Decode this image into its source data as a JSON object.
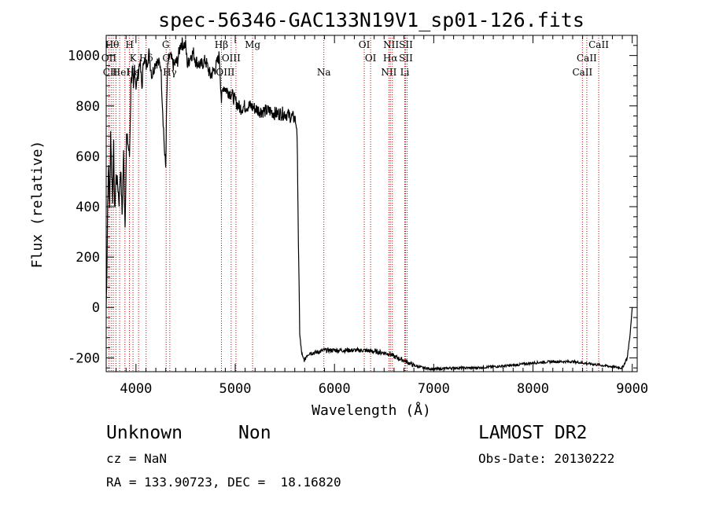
{
  "chart_data": {
    "type": "line",
    "title": "spec-56346-GAC133N19V1_sp01-126.fits",
    "xlabel": "Wavelength (Å)",
    "ylabel": "Flux (relative)",
    "xlim": [
      3700,
      9050
    ],
    "ylim": [
      -255,
      1080
    ],
    "xticks": [
      4000,
      5000,
      6000,
      7000,
      8000,
      9000
    ],
    "yticks": [
      -200,
      0,
      200,
      400,
      600,
      800,
      1000
    ],
    "line_color": "#000000",
    "marker_color": "#cc0000",
    "series": [
      {
        "x": [
          3700,
          3705,
          3715,
          3725,
          3735,
          3745,
          3755,
          3765,
          3775,
          3785,
          3800,
          3815,
          3830,
          3845,
          3860,
          3875,
          3890,
          3905,
          3920,
          3935,
          3950,
          3965,
          3975,
          3985,
          4000,
          4020,
          4040,
          4060,
          4080,
          4100,
          4130,
          4160,
          4200,
          4250,
          4290,
          4300,
          4310,
          4320,
          4340,
          4380,
          4420,
          4450,
          4500,
          4520,
          4550,
          4580,
          4600,
          4650,
          4700,
          4750,
          4800,
          4840,
          4861,
          4880,
          4920,
          4960,
          5000,
          5050,
          5100,
          5150,
          5200,
          5250,
          5300,
          5350,
          5400,
          5450,
          5500,
          5550,
          5600,
          5620,
          5630,
          5640,
          5650,
          5660,
          5670,
          5680,
          5700,
          5720,
          5750,
          5800,
          5900,
          6000,
          6100,
          6200,
          6300,
          6400,
          6500,
          6563,
          6600,
          6700,
          6800,
          6900,
          7000,
          7200,
          7400,
          7600,
          7800,
          8000,
          8200,
          8400,
          8500,
          8600,
          8700,
          8800,
          8900,
          8950,
          8980,
          9000
        ],
        "y": [
          0,
          100,
          420,
          560,
          380,
          700,
          540,
          430,
          640,
          380,
          520,
          490,
          420,
          560,
          370,
          610,
          320,
          680,
          650,
          600,
          900,
          940,
          850,
          960,
          880,
          920,
          980,
          870,
          1000,
          950,
          1010,
          920,
          980,
          960,
          600,
          560,
          820,
          960,
          1000,
          960,
          980,
          1050,
          1040,
          960,
          1000,
          1010,
          980,
          960,
          980,
          920,
          950,
          1000,
          820,
          880,
          860,
          850,
          820,
          790,
          800,
          800,
          790,
          780,
          780,
          780,
          770,
          770,
          770,
          760,
          750,
          720,
          500,
          150,
          -100,
          -150,
          -180,
          -200,
          -210,
          -190,
          -180,
          -180,
          -170,
          -170,
          -170,
          -170,
          -170,
          -175,
          -180,
          -185,
          -195,
          -210,
          -230,
          -240,
          -245,
          -240,
          -240,
          -235,
          -230,
          -220,
          -215,
          -215,
          -220,
          -225,
          -230,
          -235,
          -240,
          -200,
          -100,
          0
        ]
      }
    ],
    "line_markers_red": [
      {
        "x": 3727,
        "label": ""
      },
      {
        "x": 3750,
        "label": ""
      },
      {
        "x": 3771,
        "label": ""
      },
      {
        "x": 3798,
        "label": ""
      },
      {
        "x": 3835,
        "label": ""
      },
      {
        "x": 3889,
        "label": ""
      },
      {
        "x": 3934,
        "label": ""
      },
      {
        "x": 3970,
        "label": ""
      },
      {
        "x": 4026,
        "label": ""
      },
      {
        "x": 4102,
        "label": ""
      },
      {
        "x": 4304,
        "label": ""
      },
      {
        "x": 4341,
        "label": ""
      },
      {
        "x": 4861,
        "label": ""
      },
      {
        "x": 4959,
        "label": ""
      },
      {
        "x": 5007,
        "label": ""
      },
      {
        "x": 5175,
        "label": ""
      },
      {
        "x": 5893,
        "label": ""
      },
      {
        "x": 6300,
        "label": ""
      },
      {
        "x": 6364,
        "label": ""
      },
      {
        "x": 6548,
        "label": ""
      },
      {
        "x": 6563,
        "label": ""
      },
      {
        "x": 6583,
        "label": ""
      },
      {
        "x": 6708,
        "label": ""
      },
      {
        "x": 6716,
        "label": ""
      },
      {
        "x": 6731,
        "label": ""
      },
      {
        "x": 8498,
        "label": ""
      },
      {
        "x": 8542,
        "label": ""
      },
      {
        "x": 8662,
        "label": ""
      }
    ],
    "line_labels": [
      {
        "x": 3760,
        "row": 0,
        "text": "Hθ"
      },
      {
        "x": 3935,
        "row": 0,
        "text": "H"
      },
      {
        "x": 4300,
        "row": 0,
        "text": "G"
      },
      {
        "x": 4861,
        "row": 0,
        "text": "Hβ"
      },
      {
        "x": 5175,
        "row": 0,
        "text": "Mg"
      },
      {
        "x": 6300,
        "row": 0,
        "text": "OI"
      },
      {
        "x": 6570,
        "row": 0,
        "text": "NII"
      },
      {
        "x": 6720,
        "row": 0,
        "text": "SII"
      },
      {
        "x": 8662,
        "row": 0,
        "text": "CaII"
      },
      {
        "x": 3727,
        "row": 1,
        "text": "OII"
      },
      {
        "x": 3970,
        "row": 1,
        "text": "K"
      },
      {
        "x": 4102,
        "row": 1,
        "text": "Hδ"
      },
      {
        "x": 4304,
        "row": 1,
        "text": "G"
      },
      {
        "x": 4959,
        "row": 1,
        "text": "OIII"
      },
      {
        "x": 6364,
        "row": 1,
        "text": "OI"
      },
      {
        "x": 6563,
        "row": 1,
        "text": "Hα"
      },
      {
        "x": 6720,
        "row": 1,
        "text": "SII"
      },
      {
        "x": 8542,
        "row": 1,
        "text": "CaII"
      },
      {
        "x": 3740,
        "row": 2,
        "text": "CII"
      },
      {
        "x": 3850,
        "row": 2,
        "text": "HeI"
      },
      {
        "x": 3970,
        "row": 2,
        "text": "Hε"
      },
      {
        "x": 4341,
        "row": 2,
        "text": "Hγ"
      },
      {
        "x": 4900,
        "row": 2,
        "text": "OIII"
      },
      {
        "x": 5893,
        "row": 2,
        "text": "Na"
      },
      {
        "x": 6548,
        "row": 2,
        "text": "NII"
      },
      {
        "x": 6708,
        "row": 2,
        "text": "Li"
      },
      {
        "x": 8498,
        "row": 2,
        "text": "CaII"
      }
    ]
  },
  "info": {
    "object_class": "Unknown",
    "subclass": "Non",
    "survey": "LAMOST DR2",
    "cz": "cz = NaN",
    "obs_date": "Obs-Date: 20130222",
    "coords": "RA = 133.90723, DEC =  18.16820"
  }
}
